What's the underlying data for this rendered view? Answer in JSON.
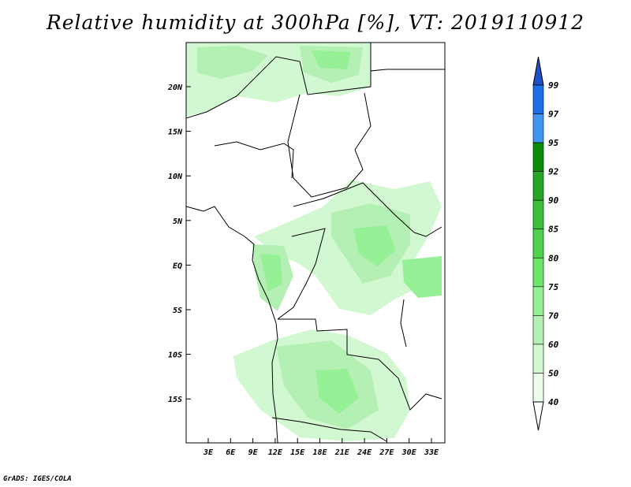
{
  "title": "Relative humidity at 300hPa [%], VT: 2019110912",
  "footer": "GrADS: IGES/COLA",
  "map": {
    "lat_labels": [
      "20N",
      "15N",
      "10N",
      "5N",
      "EQ",
      "5S",
      "10S",
      "15S"
    ],
    "lon_labels": [
      "3E",
      "6E",
      "9E",
      "12E",
      "15E",
      "18E",
      "21E",
      "24E",
      "27E",
      "30E",
      "33E"
    ]
  },
  "colorbar": {
    "labels": [
      "99",
      "97",
      "95",
      "92",
      "90",
      "85",
      "80",
      "75",
      "70",
      "60",
      "50",
      "40"
    ],
    "colors": [
      "#1e50c8",
      "#1e6ee6",
      "#4196f0",
      "#0a8c0a",
      "#28a528",
      "#3cbe3c",
      "#50d250",
      "#6ee66e",
      "#96f096",
      "#b4f0b4",
      "#d2f8d2",
      "#ebfceb"
    ]
  }
}
